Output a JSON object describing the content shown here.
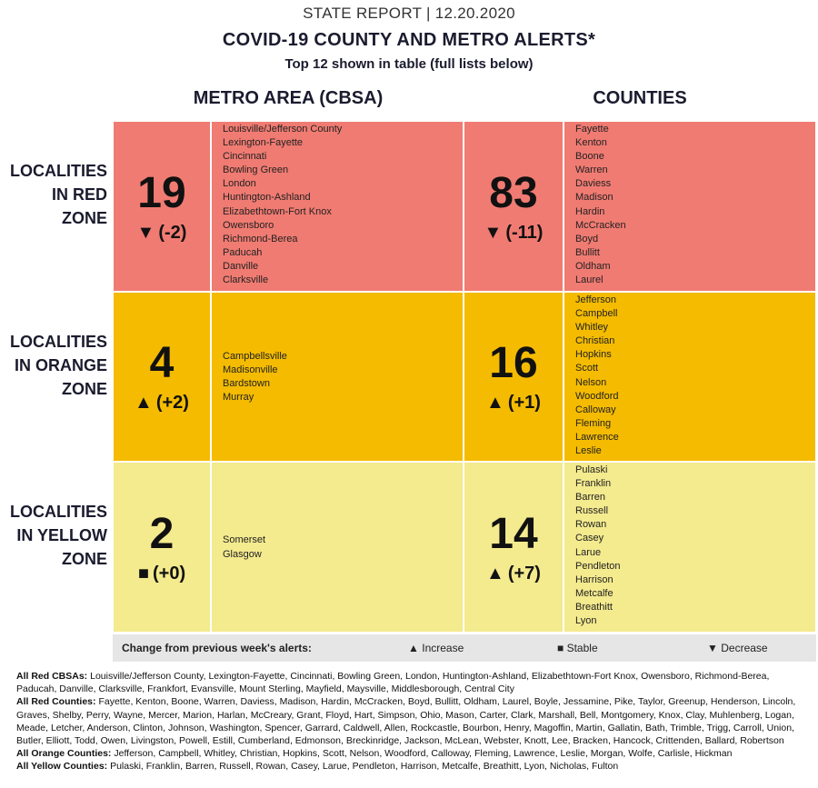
{
  "header": {
    "report": "STATE REPORT | 12.20.2020",
    "title": "COVID-19 COUNTY AND METRO ALERTS*",
    "subtitle": "Top 12 shown in table (full lists below)"
  },
  "columns": {
    "metro": "METRO AREA (CBSA)",
    "counties": "COUNTIES"
  },
  "rows": {
    "red": {
      "label": [
        "LOCALITIES",
        "IN RED",
        "ZONE"
      ],
      "metro_count": "19",
      "metro_change": "(-2)",
      "metro_symbol": "▼",
      "metro_list": [
        "Louisville/Jefferson County",
        "Lexington-Fayette",
        "Cincinnati",
        "Bowling Green",
        "London",
        "Huntington-Ashland",
        "Elizabethtown-Fort Knox",
        "Owensboro",
        "Richmond-Berea",
        "Paducah",
        "Danville",
        "Clarksville"
      ],
      "county_count": "83",
      "county_change": "(-11)",
      "county_symbol": "▼",
      "county_list": [
        "Fayette",
        "Kenton",
        "Boone",
        "Warren",
        "Daviess",
        "Madison",
        "Hardin",
        "McCracken",
        "Boyd",
        "Bullitt",
        "Oldham",
        "Laurel"
      ]
    },
    "orange": {
      "label": [
        "LOCALITIES",
        "IN ORANGE",
        "ZONE"
      ],
      "metro_count": "4",
      "metro_change": "(+2)",
      "metro_symbol": "▲",
      "metro_list": [
        "Campbellsville",
        "Madisonville",
        "Bardstown",
        "Murray"
      ],
      "county_count": "16",
      "county_change": "(+1)",
      "county_symbol": "▲",
      "county_list": [
        "Jefferson",
        "Campbell",
        "Whitley",
        "Christian",
        "Hopkins",
        "Scott",
        "Nelson",
        "Woodford",
        "Calloway",
        "Fleming",
        "Lawrence",
        "Leslie"
      ]
    },
    "yellow": {
      "label": [
        "LOCALITIES",
        "IN YELLOW",
        "ZONE"
      ],
      "metro_count": "2",
      "metro_change": "(+0)",
      "metro_symbol": "■",
      "metro_list": [
        "Somerset",
        "Glasgow"
      ],
      "county_count": "14",
      "county_change": "(+7)",
      "county_symbol": "▲",
      "county_list": [
        "Pulaski",
        "Franklin",
        "Barren",
        "Russell",
        "Rowan",
        "Casey",
        "Larue",
        "Pendleton",
        "Harrison",
        "Metcalfe",
        "Breathitt",
        "Lyon"
      ]
    }
  },
  "legend": {
    "label": "Change from previous week's alerts:",
    "increase_symbol": "▲",
    "increase": "Increase",
    "stable_symbol": "■",
    "stable": "Stable",
    "decrease_symbol": "▼",
    "decrease": "Decrease"
  },
  "footer": {
    "red_cbsas_label": "All Red CBSAs:",
    "red_cbsas": "Louisville/Jefferson County, Lexington-Fayette, Cincinnati, Bowling Green, London, Huntington-Ashland, Elizabethtown-Fort Knox, Owensboro, Richmond-Berea, Paducah, Danville, Clarksville, Frankfort, Evansville, Mount Sterling, Mayfield, Maysville, Middlesborough, Central City",
    "red_counties_label": "All Red Counties:",
    "red_counties": "Fayette, Kenton, Boone, Warren, Daviess, Madison, Hardin, McCracken, Boyd, Bullitt, Oldham, Laurel, Boyle, Jessamine, Pike, Taylor, Greenup, Henderson, Lincoln, Graves, Shelby, Perry, Wayne, Mercer, Marion, Harlan, McCreary, Grant, Floyd, Hart, Simpson, Ohio, Mason, Carter, Clark, Marshall, Bell, Montgomery, Knox, Clay, Muhlenberg, Logan, Meade, Letcher, Anderson, Clinton, Johnson, Washington, Spencer, Garrard, Caldwell, Allen, Rockcastle, Bourbon, Henry, Magoffin, Martin, Gallatin, Bath, Trimble, Trigg, Carroll, Union, Butler, Elliott, Todd, Owen, Livingston, Powell, Estill, Cumberland, Edmonson, Breckinridge, Jackson, McLean, Webster, Knott, Lee, Bracken, Hancock, Crittenden, Ballard, Robertson",
    "orange_counties_label": "All Orange Counties:",
    "orange_counties": "Jefferson, Campbell, Whitley, Christian, Hopkins, Scott, Nelson, Woodford, Calloway, Fleming, Lawrence, Leslie, Morgan, Wolfe, Carlisle, Hickman",
    "yellow_counties_label": "All Yellow Counties:",
    "yellow_counties": "Pulaski, Franklin, Barren, Russell, Rowan, Casey, Larue, Pendleton, Harrison, Metcalfe, Breathitt, Lyon, Nicholas, Fulton"
  }
}
